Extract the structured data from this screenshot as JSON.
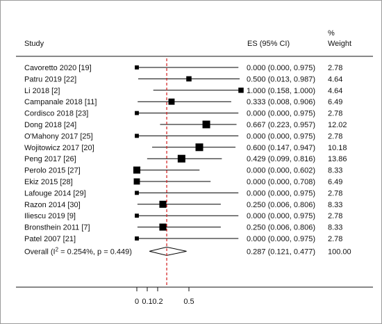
{
  "headers": {
    "study": "Study",
    "es": "ES (95% CI)",
    "weight_line1": "%",
    "weight_line2": "Weight"
  },
  "chart_data": {
    "type": "forest",
    "xlim": [
      0,
      1
    ],
    "x_ticks": [
      0,
      0.1,
      0.2,
      0.5
    ],
    "x_tick_labels": [
      "0",
      "0.1",
      "0.2",
      "0.5"
    ],
    "reference_line": 0.287,
    "studies": [
      {
        "study": "Cavoretto 2020 [19]",
        "es": 0.0,
        "lo": 0.0,
        "hi": 0.975,
        "ci_text": "0.000 (0.000, 0.975)",
        "weight": "2.78"
      },
      {
        "study": "Patru 2019 [22]",
        "es": 0.5,
        "lo": 0.013,
        "hi": 0.987,
        "ci_text": "0.500 (0.013, 0.987)",
        "weight": "4.64"
      },
      {
        "study": "Li 2018 [2]",
        "es": 1.0,
        "lo": 0.158,
        "hi": 1.0,
        "ci_text": "1.000 (0.158, 1.000)",
        "weight": "4.64"
      },
      {
        "study": "Campanale 2018 [11]",
        "es": 0.333,
        "lo": 0.008,
        "hi": 0.906,
        "ci_text": "0.333 (0.008, 0.906)",
        "weight": "6.49"
      },
      {
        "study": "Cordisco 2018 [23]",
        "es": 0.0,
        "lo": 0.0,
        "hi": 0.975,
        "ci_text": "0.000 (0.000, 0.975)",
        "weight": "2.78"
      },
      {
        "study": "Dong 2018 [24]",
        "es": 0.667,
        "lo": 0.223,
        "hi": 0.957,
        "ci_text": "0.667 (0.223, 0.957)",
        "weight": "12.02"
      },
      {
        "study": "O'Mahony 2017 [25]",
        "es": 0.0,
        "lo": 0.0,
        "hi": 0.975,
        "ci_text": "0.000 (0.000, 0.975)",
        "weight": "2.78"
      },
      {
        "study": "Wojitowicz 2017 [20]",
        "es": 0.6,
        "lo": 0.147,
        "hi": 0.947,
        "ci_text": "0.600 (0.147, 0.947)",
        "weight": "10.18"
      },
      {
        "study": "Peng 2017 [26]",
        "es": 0.429,
        "lo": 0.099,
        "hi": 0.816,
        "ci_text": "0.429 (0.099, 0.816)",
        "weight": "13.86"
      },
      {
        "study": "Perolo 2015 [27]",
        "es": 0.0,
        "lo": 0.0,
        "hi": 0.602,
        "ci_text": "0.000 (0.000, 0.602)",
        "weight": "8.33"
      },
      {
        "study": "Ekiz 2015 [28]",
        "es": 0.0,
        "lo": 0.0,
        "hi": 0.708,
        "ci_text": "0.000 (0.000, 0.708)",
        "weight": "6.49"
      },
      {
        "study": "Lafouge 2014 [29]",
        "es": 0.0,
        "lo": 0.0,
        "hi": 0.975,
        "ci_text": "0.000 (0.000, 0.975)",
        "weight": "2.78"
      },
      {
        "study": "Razon 2014 [30]",
        "es": 0.25,
        "lo": 0.006,
        "hi": 0.806,
        "ci_text": "0.250 (0.006, 0.806)",
        "weight": "8.33"
      },
      {
        "study": "Iliescu 2019 [9]",
        "es": 0.0,
        "lo": 0.0,
        "hi": 0.975,
        "ci_text": "0.000 (0.000, 0.975)",
        "weight": "2.78"
      },
      {
        "study": "Bronsthein 2011 [7]",
        "es": 0.25,
        "lo": 0.006,
        "hi": 0.806,
        "ci_text": "0.250 (0.006, 0.806)",
        "weight": "8.33"
      },
      {
        "study": "Patel 2007 [21]",
        "es": 0.0,
        "lo": 0.0,
        "hi": 0.975,
        "ci_text": "0.000 (0.000, 0.975)",
        "weight": "2.78"
      }
    ],
    "overall": {
      "label_prefix": "Overall  (I",
      "label_sup": "2",
      "label_suffix": " = 0.254%, p = 0.449)",
      "es": 0.287,
      "lo": 0.121,
      "hi": 0.477,
      "ci_text": "0.287 (0.121, 0.477)",
      "weight": "100.00"
    },
    "colors": {
      "marker": "#000000",
      "ref_line": "#d21a1a",
      "text": "#111111"
    }
  }
}
